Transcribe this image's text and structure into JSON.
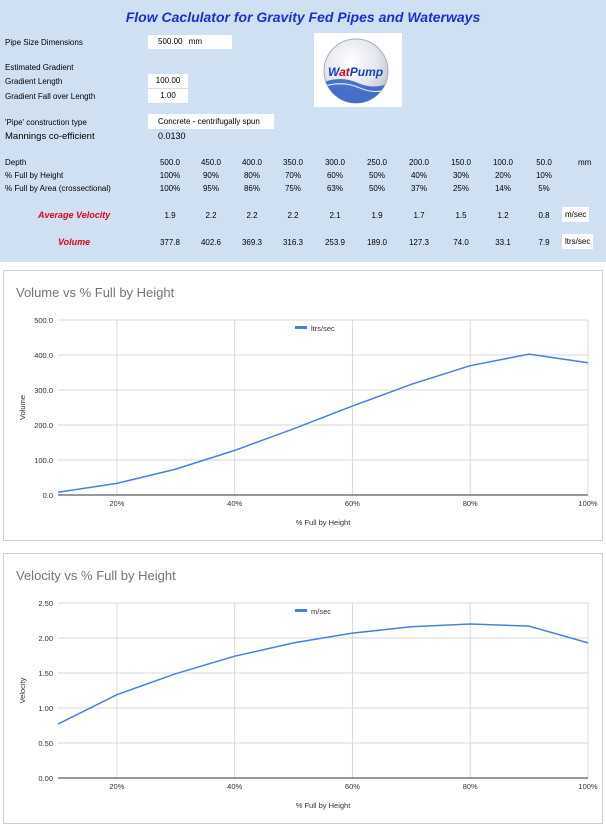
{
  "title": "Flow Caclulator for Gravity Fed Pipes and Waterways",
  "inputs": {
    "pipe_size_label": "Pipe Size Dimensions",
    "pipe_size_value": "500.00",
    "pipe_size_unit": "mm",
    "gradient_heading": "Estimated Gradient",
    "gradient_length_label": "Gradient Length",
    "gradient_length_value": "100.00",
    "gradient_fall_label": "Gradient Fall over Length",
    "gradient_fall_value": "1.00",
    "construction_label": "'Pipe' construction type",
    "construction_value": "Concrete - centrifugally spun",
    "mannings_label": "Mannings co-efficient",
    "mannings_value": "0.0130"
  },
  "logo": {
    "text_w": "W",
    "text_at": "at",
    "text_pump": "Pump"
  },
  "table": {
    "depth_label": "Depth",
    "depth_unit": "mm",
    "depth": [
      "500.0",
      "450.0",
      "400.0",
      "350.0",
      "300.0",
      "250.0",
      "200.0",
      "150.0",
      "100.0",
      "50.0"
    ],
    "height_label": "% Full by Height",
    "height": [
      "100%",
      "90%",
      "80%",
      "70%",
      "60%",
      "50%",
      "40%",
      "30%",
      "20%",
      "10%"
    ],
    "area_label": "% Full by Area (crossectional)",
    "area": [
      "100%",
      "95%",
      "86%",
      "75%",
      "63%",
      "50%",
      "37%",
      "25%",
      "14%",
      "5%"
    ],
    "velocity_label": "Average Velocity",
    "velocity_unit": "m/sec",
    "velocity": [
      "1.9",
      "2.2",
      "2.2",
      "2.2",
      "2.1",
      "1.9",
      "1.7",
      "1.5",
      "1.2",
      "0.8"
    ],
    "volume_label": "Volume",
    "volume_unit": "ltrs/sec",
    "volume": [
      "377.8",
      "402.6",
      "369.3",
      "316.3",
      "253.9",
      "189.0",
      "127.3",
      "74.0",
      "33.1",
      "7.9"
    ]
  },
  "chart_data": [
    {
      "type": "line",
      "title": "Volume vs % Full by Height",
      "xlabel": "% Full by Height",
      "ylabel": "Volume",
      "x": [
        10,
        20,
        30,
        40,
        50,
        60,
        70,
        80,
        90,
        100
      ],
      "x_tick_values": [
        20,
        40,
        60,
        80,
        100
      ],
      "x_tick_labels": [
        "20%",
        "40%",
        "60%",
        "80%",
        "100%"
      ],
      "xlim": [
        10,
        100
      ],
      "ylim": [
        0,
        500
      ],
      "y_tick_values": [
        0,
        100,
        200,
        300,
        400,
        500
      ],
      "y_tick_labels": [
        "0.0",
        "100.0",
        "200.0",
        "300.0",
        "400.0",
        "500.0"
      ],
      "grid": true,
      "legend_position": "top-center",
      "color": "#4a7fe0",
      "series": [
        {
          "name": "ltrs/sec",
          "values": [
            7.9,
            33.1,
            74.0,
            127.3,
            189.0,
            253.9,
            316.3,
            369.3,
            402.6,
            377.8
          ]
        }
      ]
    },
    {
      "type": "line",
      "title": "Velocity vs % Full by Height",
      "xlabel": "% Full by Height",
      "ylabel": "Velocity",
      "x": [
        10,
        20,
        30,
        40,
        50,
        60,
        70,
        80,
        90,
        100
      ],
      "x_tick_values": [
        20,
        40,
        60,
        80,
        100
      ],
      "x_tick_labels": [
        "20%",
        "40%",
        "60%",
        "80%",
        "100%"
      ],
      "xlim": [
        10,
        100
      ],
      "ylim": [
        0,
        2.5
      ],
      "y_tick_values": [
        0,
        0.5,
        1,
        1.5,
        2,
        2.5
      ],
      "y_tick_labels": [
        "0.00",
        "0.50",
        "1.00",
        "1.50",
        "2.00",
        "2.50"
      ],
      "grid": true,
      "legend_position": "top-center",
      "color": "#4a7fe0",
      "series": [
        {
          "name": "m/sec",
          "values": [
            0.77,
            1.19,
            1.49,
            1.74,
            1.93,
            2.07,
            2.16,
            2.2,
            2.17,
            1.93
          ]
        }
      ]
    }
  ]
}
